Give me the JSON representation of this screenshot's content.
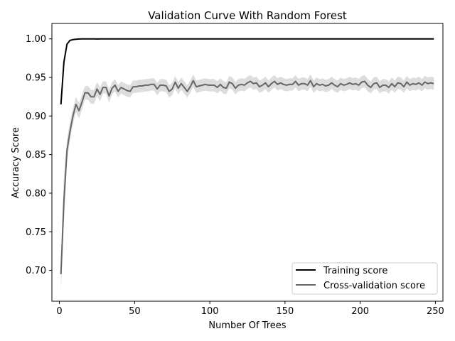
{
  "chart_data": {
    "type": "line",
    "title": "Validation Curve With Random Forest",
    "xlabel": "Number Of Trees",
    "ylabel": "Accuracy Score",
    "xlim": [
      -5,
      255
    ],
    "ylim": [
      0.66,
      1.02
    ],
    "xticks": [
      0,
      50,
      100,
      150,
      200,
      250
    ],
    "yticks": [
      0.7,
      0.75,
      0.8,
      0.85,
      0.9,
      0.95,
      1.0
    ],
    "x": [
      1,
      3,
      5,
      7,
      9,
      11,
      13,
      15,
      17,
      19,
      21,
      23,
      25,
      27,
      29,
      31,
      33,
      35,
      37,
      39,
      41,
      43,
      45,
      47,
      49,
      51,
      53,
      55,
      57,
      59,
      61,
      63,
      65,
      67,
      69,
      71,
      73,
      75,
      77,
      79,
      81,
      83,
      85,
      87,
      89,
      91,
      93,
      95,
      97,
      99,
      101,
      103,
      105,
      107,
      109,
      111,
      113,
      115,
      117,
      119,
      121,
      123,
      125,
      127,
      129,
      131,
      133,
      135,
      137,
      139,
      141,
      143,
      145,
      147,
      149,
      151,
      153,
      155,
      157,
      159,
      161,
      163,
      165,
      167,
      169,
      171,
      173,
      175,
      177,
      179,
      181,
      183,
      185,
      187,
      189,
      191,
      193,
      195,
      197,
      199,
      201,
      203,
      205,
      207,
      209,
      211,
      213,
      215,
      217,
      219,
      221,
      223,
      225,
      227,
      229,
      231,
      233,
      235,
      237,
      239,
      241,
      243,
      245,
      247,
      249
    ],
    "series": [
      {
        "name": "Training score",
        "color": "#000000",
        "values": [
          0.915,
          0.97,
          0.993,
          0.998,
          0.999,
          0.9995,
          0.9998,
          1,
          1,
          1,
          1,
          1,
          0.9998,
          1,
          1,
          1,
          1,
          1,
          1,
          1,
          1,
          1,
          1,
          1,
          1,
          1,
          1,
          1,
          1,
          1,
          1,
          1,
          1,
          1,
          1,
          1,
          1,
          1,
          1,
          1,
          1,
          1,
          1,
          1,
          1,
          1,
          1,
          1,
          1,
          1,
          1,
          1,
          1,
          1,
          1,
          1,
          1,
          1,
          1,
          1,
          1,
          1,
          1,
          1,
          1,
          1,
          1,
          1,
          1,
          1,
          1,
          1,
          1,
          1,
          1,
          1,
          1,
          1,
          1,
          1,
          1,
          1,
          1,
          1,
          1,
          1,
          1,
          1,
          1,
          1,
          1,
          1,
          1,
          1,
          1,
          1,
          1,
          1,
          1,
          1,
          1,
          1,
          1,
          1,
          1,
          1,
          1,
          1,
          1,
          1,
          1,
          1,
          1,
          1,
          1,
          1,
          1,
          1,
          1,
          1,
          1,
          1,
          1,
          1,
          1
        ],
        "std": [
          0.005,
          0.002,
          0.001,
          0.0005,
          0.0005,
          0.0003,
          0.0002,
          0,
          0,
          0,
          0,
          0,
          0,
          0,
          0,
          0,
          0,
          0,
          0,
          0,
          0,
          0,
          0,
          0,
          0,
          0,
          0,
          0,
          0,
          0,
          0,
          0,
          0,
          0,
          0,
          0,
          0,
          0,
          0,
          0,
          0,
          0,
          0,
          0,
          0,
          0,
          0,
          0,
          0,
          0,
          0,
          0,
          0,
          0,
          0,
          0,
          0,
          0,
          0,
          0,
          0,
          0,
          0,
          0,
          0,
          0,
          0,
          0,
          0,
          0,
          0,
          0,
          0,
          0,
          0,
          0,
          0,
          0,
          0,
          0,
          0,
          0,
          0,
          0,
          0,
          0,
          0,
          0,
          0,
          0,
          0,
          0,
          0,
          0,
          0,
          0,
          0,
          0,
          0,
          0,
          0,
          0,
          0,
          0,
          0,
          0,
          0,
          0,
          0,
          0,
          0,
          0,
          0,
          0,
          0,
          0,
          0,
          0,
          0,
          0,
          0,
          0,
          0,
          0,
          0
        ]
      },
      {
        "name": "Cross-validation score",
        "color": "#666666",
        "band_color": "#dddddd",
        "values": [
          0.695,
          0.79,
          0.855,
          0.88,
          0.9,
          0.915,
          0.907,
          0.918,
          0.93,
          0.93,
          0.925,
          0.925,
          0.935,
          0.928,
          0.937,
          0.937,
          0.926,
          0.936,
          0.94,
          0.932,
          0.937,
          0.935,
          0.933,
          0.932,
          0.938,
          0.938,
          0.939,
          0.939,
          0.94,
          0.94,
          0.941,
          0.941,
          0.935,
          0.94,
          0.94,
          0.939,
          0.932,
          0.935,
          0.944,
          0.936,
          0.942,
          0.937,
          0.932,
          0.938,
          0.946,
          0.938,
          0.939,
          0.94,
          0.941,
          0.94,
          0.94,
          0.94,
          0.937,
          0.941,
          0.937,
          0.936,
          0.944,
          0.942,
          0.936,
          0.94,
          0.941,
          0.94,
          0.943,
          0.945,
          0.942,
          0.943,
          0.938,
          0.94,
          0.943,
          0.938,
          0.942,
          0.945,
          0.941,
          0.943,
          0.941,
          0.94,
          0.941,
          0.941,
          0.945,
          0.94,
          0.942,
          0.942,
          0.94,
          0.946,
          0.938,
          0.942,
          0.94,
          0.941,
          0.939,
          0.94,
          0.943,
          0.94,
          0.938,
          0.942,
          0.94,
          0.941,
          0.943,
          0.941,
          0.942,
          0.94,
          0.944,
          0.945,
          0.94,
          0.937,
          0.942,
          0.943,
          0.937,
          0.94,
          0.94,
          0.937,
          0.942,
          0.938,
          0.943,
          0.942,
          0.938,
          0.944,
          0.94,
          0.942,
          0.941,
          0.943,
          0.94,
          0.944,
          0.942,
          0.943,
          0.942
        ],
        "std": [
          0.02,
          0.03,
          0.015,
          0.012,
          0.01,
          0.01,
          0.01,
          0.01,
          0.009,
          0.009,
          0.009,
          0.009,
          0.009,
          0.009,
          0.008,
          0.008,
          0.009,
          0.008,
          0.008,
          0.008,
          0.008,
          0.008,
          0.008,
          0.008,
          0.008,
          0.008,
          0.008,
          0.008,
          0.008,
          0.008,
          0.008,
          0.008,
          0.008,
          0.008,
          0.008,
          0.008,
          0.008,
          0.008,
          0.008,
          0.008,
          0.008,
          0.008,
          0.008,
          0.008,
          0.008,
          0.008,
          0.008,
          0.008,
          0.008,
          0.008,
          0.008,
          0.008,
          0.008,
          0.008,
          0.008,
          0.008,
          0.008,
          0.008,
          0.008,
          0.008,
          0.008,
          0.008,
          0.008,
          0.008,
          0.008,
          0.008,
          0.008,
          0.008,
          0.008,
          0.008,
          0.008,
          0.008,
          0.008,
          0.008,
          0.008,
          0.008,
          0.008,
          0.008,
          0.008,
          0.008,
          0.008,
          0.008,
          0.008,
          0.008,
          0.008,
          0.008,
          0.008,
          0.008,
          0.008,
          0.008,
          0.008,
          0.008,
          0.008,
          0.008,
          0.008,
          0.008,
          0.008,
          0.008,
          0.008,
          0.008,
          0.008,
          0.008,
          0.008,
          0.008,
          0.008,
          0.008,
          0.008,
          0.008,
          0.008,
          0.008,
          0.008,
          0.008,
          0.008,
          0.008,
          0.008,
          0.008,
          0.008,
          0.008,
          0.008,
          0.008,
          0.008,
          0.008,
          0.008,
          0.008,
          0.008
        ]
      }
    ],
    "legend": {
      "placement": "lower-right",
      "entries": [
        "Training score",
        "Cross-validation score"
      ]
    },
    "grid": false
  }
}
